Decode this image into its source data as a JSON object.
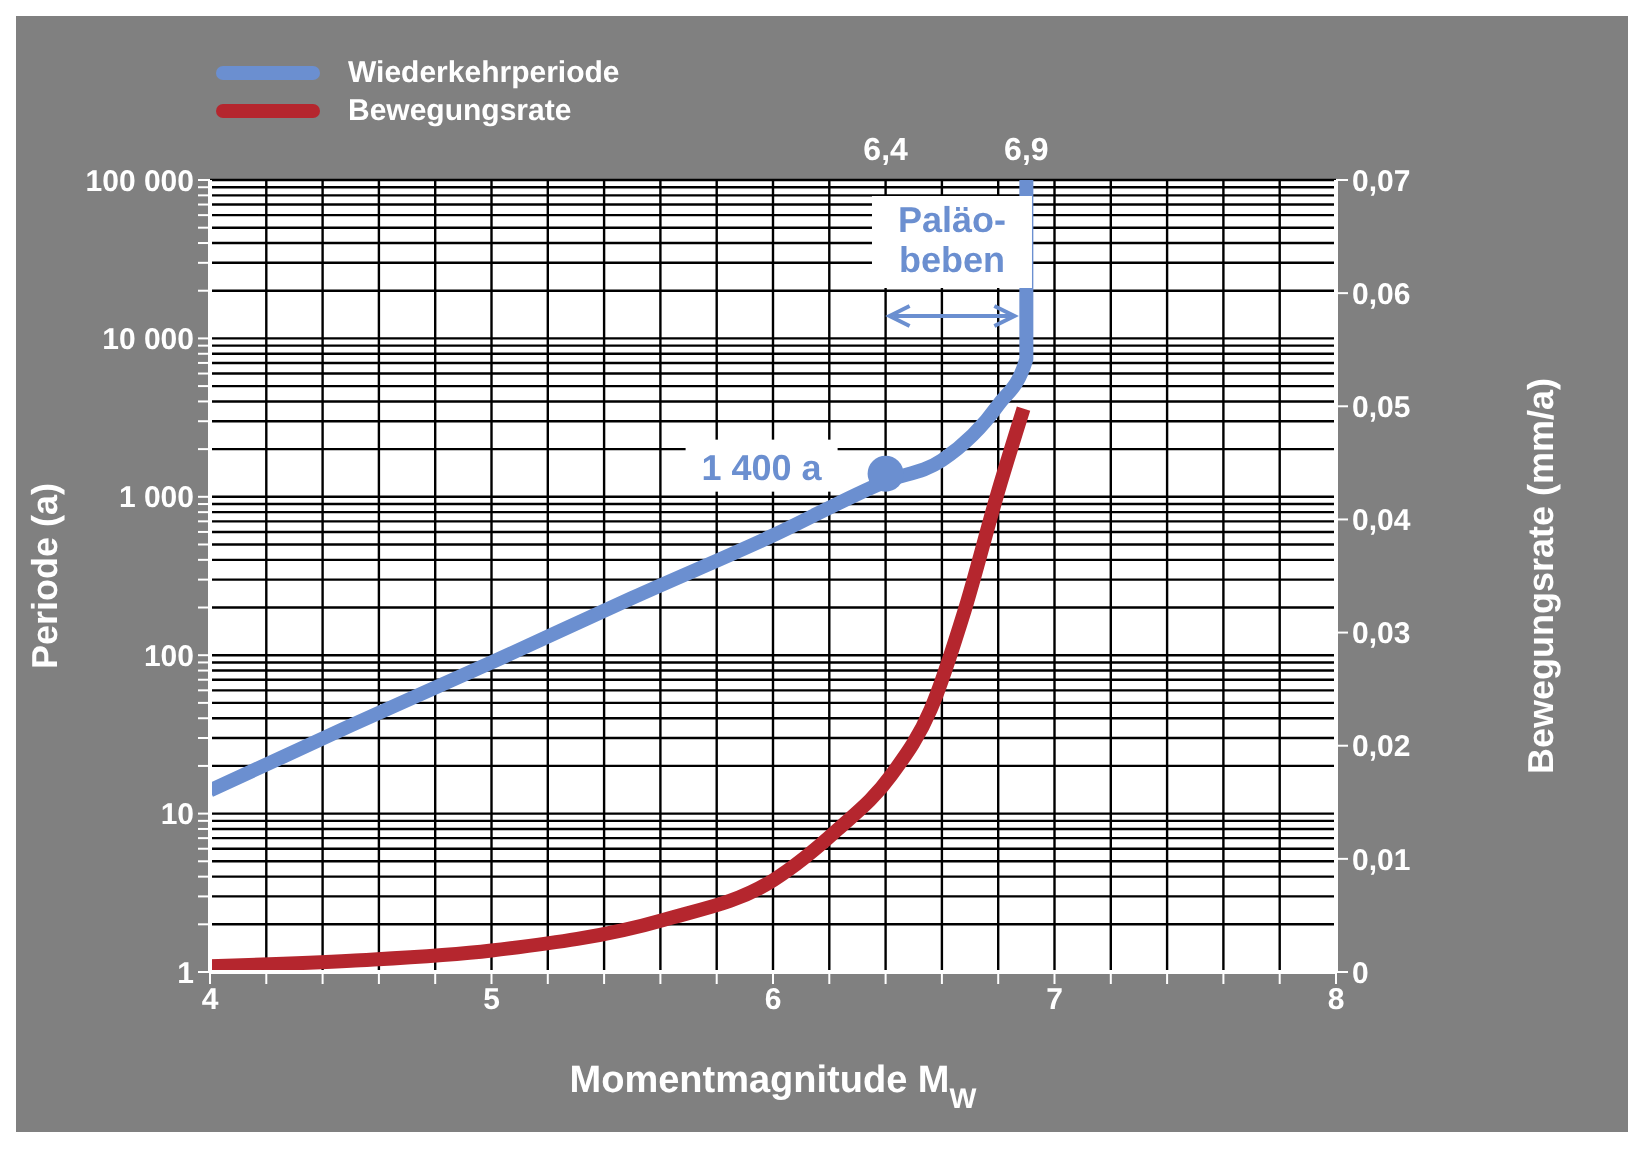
{
  "chart_data": {
    "type": "line",
    "xlabel": "Momentmagnitude M$_{W}$",
    "ylabel": "Periode (a)",
    "y2label": "Bewegungsrate (mm/a)",
    "xlim": [
      4,
      8
    ],
    "xticks": [
      4,
      {
        "value": 4.2,
        "label": null
      },
      {
        "value": 4.4,
        "label": null
      },
      {
        "value": 4.6,
        "label": null
      },
      {
        "value": 4.8,
        "label": null
      },
      5,
      {
        "value": 5.2,
        "label": null
      },
      {
        "value": 5.4,
        "label": null
      },
      {
        "value": 5.6,
        "label": null
      },
      {
        "value": 5.8,
        "label": null
      },
      6,
      {
        "value": 6.2,
        "label": null
      },
      {
        "value": 6.4,
        "label": null
      },
      {
        "value": 6.6,
        "label": null
      },
      {
        "value": 6.8,
        "label": null
      },
      7,
      {
        "value": 7.2,
        "label": null
      },
      {
        "value": 7.4,
        "label": null
      },
      {
        "value": 7.6,
        "label": null
      },
      {
        "value": 7.8,
        "label": null
      },
      8
    ],
    "x2lim": [
      4,
      8
    ],
    "x2ticks": [
      {
        "value": 6.4,
        "label": "6,4"
      },
      {
        "value": 6.9,
        "label": "6,9"
      }
    ],
    "log": "y",
    "ylim": [
      1,
      100000
    ],
    "yticks": [
      1,
      {
        "value": 2,
        "label": null
      },
      {
        "value": 3,
        "label": null
      },
      {
        "value": 4,
        "label": null
      },
      {
        "value": 5,
        "label": null
      },
      {
        "value": 6,
        "label": null
      },
      {
        "value": 7,
        "label": null
      },
      {
        "value": 8,
        "label": null
      },
      {
        "value": 9,
        "label": null
      },
      10,
      {
        "value": 20,
        "label": null
      },
      {
        "value": 30,
        "label": null
      },
      {
        "value": 40,
        "label": null
      },
      {
        "value": 50,
        "label": null
      },
      {
        "value": 60,
        "label": null
      },
      {
        "value": 70,
        "label": null
      },
      {
        "value": 80,
        "label": null
      },
      {
        "value": 90,
        "label": null
      },
      100,
      {
        "value": 200,
        "label": null
      },
      {
        "value": 300,
        "label": null
      },
      {
        "value": 400,
        "label": null
      },
      {
        "value": 500,
        "label": null
      },
      {
        "value": 600,
        "label": null
      },
      {
        "value": 700,
        "label": null
      },
      {
        "value": 800,
        "label": null
      },
      {
        "value": 900,
        "label": null
      },
      {
        "value": 1000,
        "label": "1 000"
      },
      {
        "value": 2000,
        "label": null
      },
      {
        "value": 3000,
        "label": null
      },
      {
        "value": 4000,
        "label": null
      },
      {
        "value": 5000,
        "label": null
      },
      {
        "value": 6000,
        "label": null
      },
      {
        "value": 7000,
        "label": null
      },
      {
        "value": 8000,
        "label": null
      },
      {
        "value": 9000,
        "label": null
      },
      {
        "value": 10000,
        "label": "10 000"
      },
      {
        "value": 20000,
        "label": null
      },
      {
        "value": 30000,
        "label": null
      },
      {
        "value": 40000,
        "label": null
      },
      {
        "value": 50000,
        "label": null
      },
      {
        "value": 60000,
        "label": null
      },
      {
        "value": 70000,
        "label": null
      },
      {
        "value": 80000,
        "label": null
      },
      {
        "value": 90000,
        "label": null
      },
      {
        "value": 100000,
        "label": "100 000"
      }
    ],
    "y2lim": [
      0,
      0.07
    ],
    "y2ticks": [
      0,
      {
        "value": 0.01,
        "label": "0,01"
      },
      {
        "value": 0.02,
        "label": "0,02"
      },
      {
        "value": 0.03,
        "label": "0,03"
      },
      {
        "value": 0.04,
        "label": "0,04"
      },
      {
        "value": 0.05,
        "label": "0,05"
      },
      {
        "value": 0.06,
        "label": "0,06"
      },
      {
        "value": 0.07,
        "label": "0,07"
      }
    ],
    "grid": true,
    "legend": "top left",
    "marker": "none",
    "line_style": "solid",
    "series": [
      {
        "name": "Wiederkehrperiode",
        "color": "#6b8fd0",
        "x": [
          4,
          4.5,
          5,
          5.5,
          6,
          6.4,
          6.6,
          6.8,
          6.9,
          6.9
        ],
        "values": [
          14,
          36,
          90,
          230,
          570,
          1250,
          1700,
          3800,
          7400,
          100000
        ]
      },
      {
        "name": "Bewegungsrate",
        "color": "#b5262e",
        "axis": "y2",
        "x": [
          4,
          4.5,
          5,
          5.61,
          6,
          6.23,
          6.42,
          6.56,
          6.68,
          6.8,
          6.89
        ],
        "values": [
          0.0005,
          0.001,
          0.0019,
          0.0046,
          0.0081,
          0.0126,
          0.0174,
          0.0232,
          0.0319,
          0.0425,
          0.0498
        ]
      },
      {
        "type": "scatter",
        "color": "#6b8fd0",
        "marker": "circle",
        "x": [
          6.4
        ],
        "values": [
          1400
        ]
      }
    ],
    "annotations": [
      {
        "text": "1 400 a",
        "x": 6.4,
        "y": 1400
      },
      "Paläo-\nbeben"
    ]
  }
}
